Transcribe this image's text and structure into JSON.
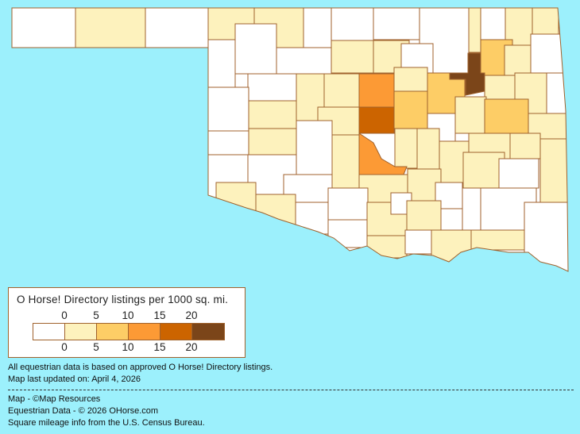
{
  "legend": {
    "title": "O Horse! Directory listings per 1000 sq. mi.",
    "ticks": [
      "0",
      "5",
      "10",
      "15",
      "20"
    ],
    "bins": [
      {
        "range": "0",
        "color": "#ffffff"
      },
      {
        "range": "0-5",
        "color": "#fdf2bd"
      },
      {
        "range": "5-10",
        "color": "#fdcd66"
      },
      {
        "range": "10-15",
        "color": "#fc9a35"
      },
      {
        "range": "15-20",
        "color": "#cc6400"
      },
      {
        "range": "20+",
        "color": "#7b4519"
      }
    ]
  },
  "colors": {
    "background": "#9cf0fc",
    "border": "#a0622d"
  },
  "notes": {
    "data_basis": "All equestrian data is based on approved O Horse! Directory listings.",
    "updated": "Map last updated on: April 4, 2026",
    "map_credit": "Map - ©Map Resources",
    "data_credit": "Equestrian Data - © 2026 OHorse.com",
    "census_credit": "Square mileage info from the U.S. Census Bureau."
  }
}
